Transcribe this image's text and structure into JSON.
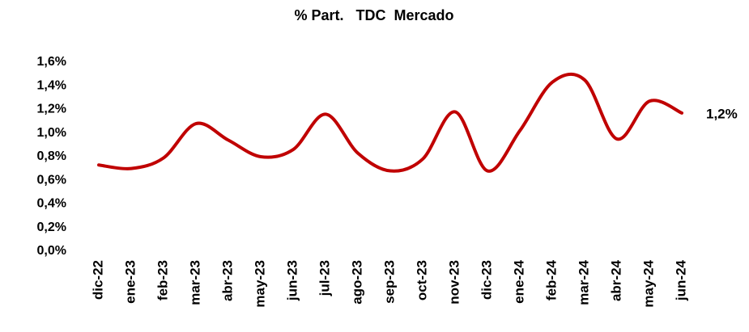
{
  "chart_data": {
    "type": "line",
    "title": "% Part.   TDC  Mercado",
    "categories": [
      "dic-22",
      "ene-23",
      "feb-23",
      "mar-23",
      "abr-23",
      "may-23",
      "jun-23",
      "jul-23",
      "ago-23",
      "sep-23",
      "oct-23",
      "nov-23",
      "dic-23",
      "ene-24",
      "feb-24",
      "mar-24",
      "abr-24",
      "may-24",
      "jun-24"
    ],
    "values": [
      0.73,
      0.7,
      0.79,
      1.08,
      0.94,
      0.8,
      0.86,
      1.16,
      0.83,
      0.68,
      0.78,
      1.18,
      0.68,
      1.02,
      1.43,
      1.45,
      0.95,
      1.27,
      1.17
    ],
    "value_labels": [
      null,
      null,
      null,
      null,
      null,
      null,
      null,
      null,
      null,
      null,
      null,
      null,
      null,
      null,
      null,
      null,
      null,
      null,
      "1,2%"
    ],
    "color": "#c00000",
    "ylim": [
      0,
      1.6
    ],
    "yticks": [
      {
        "value": 0,
        "label": "0,0%"
      },
      {
        "value": 0.2,
        "label": "0,2%"
      },
      {
        "value": 0.4,
        "label": "0,4%"
      },
      {
        "value": 0.6,
        "label": "0,6%"
      },
      {
        "value": 0.8,
        "label": "0,8%"
      },
      {
        "value": 1.0,
        "label": "1,0%"
      },
      {
        "value": 1.2,
        "label": "1,2%"
      },
      {
        "value": 1.4,
        "label": "1,4%"
      },
      {
        "value": 1.6,
        "label": "1,6%"
      }
    ],
    "grid": false
  }
}
